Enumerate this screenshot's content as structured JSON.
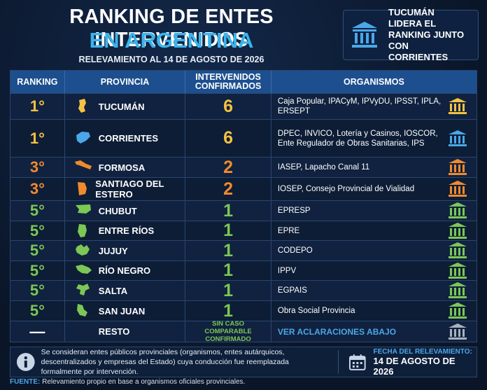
{
  "header": {
    "title": "RANKING DE ENTES INTERVENIDOS",
    "title_highlight": "EN ARGENTINA",
    "subtitle": "RELEVAMIENTO AL 14 DE AGOSTO DE 2026"
  },
  "callout": {
    "text": "TUCUMÁN LIDERA EL RANKING JUNTO CON CORRIENTES"
  },
  "table": {
    "columns": [
      "RANKING",
      "PROVINCIA",
      "INTERVENIDOS CONFIRMADOS",
      "ORGANISMOS"
    ],
    "rows": [
      {
        "rank": "1°",
        "province": "TUCUMÁN",
        "count": 6,
        "organisms": "Caja Popular, IPACyM, IPVyDU, IPSST, IPLA, ERSEPT",
        "color": "#f5c242"
      },
      {
        "rank": "1°",
        "province": "CORRIENTES",
        "count": 6,
        "organisms": "DPEC, INVICO, Lotería y Casinos, IOSCOR, Ente Regulador de Obras Sanitarias, IPS",
        "color": "#f5c242",
        "icon_color": "#4aa8e8"
      },
      {
        "rank": "3°",
        "province": "FORMOSA",
        "count": 2,
        "organisms": "IASEP, Lapacho Canal 11",
        "color": "#f08a2e"
      },
      {
        "rank": "3°",
        "province": "SANTIAGO DEL ESTERO",
        "count": 2,
        "organisms": "IOSEP, Consejo Provincial de Vialidad",
        "color": "#f08a2e"
      },
      {
        "rank": "5°",
        "province": "CHUBUT",
        "count": 1,
        "organisms": "EPRESP",
        "color": "#7cc755"
      },
      {
        "rank": "5°",
        "province": "ENTRE RÍOS",
        "count": 1,
        "organisms": "EPRE",
        "color": "#7cc755"
      },
      {
        "rank": "5°",
        "province": "JUJUY",
        "count": 1,
        "organisms": "CODEPO",
        "color": "#7cc755"
      },
      {
        "rank": "5°",
        "province": "RÍO NEGRO",
        "count": 1,
        "organisms": "IPPV",
        "color": "#7cc755"
      },
      {
        "rank": "5°",
        "province": "SALTA",
        "count": 1,
        "organisms": "EGPAIS",
        "color": "#7cc755"
      },
      {
        "rank": "5°",
        "province": "SAN JUAN",
        "count": 1,
        "organisms": "Obra Social Provincia",
        "color": "#7cc755"
      },
      {
        "rank": "—",
        "province": "RESTO",
        "count": "SIN CASO COMPARABLE CONFIRMADO",
        "organisms": "VER ACLARACIONES ABAJO",
        "color": "#ffffff"
      }
    ]
  },
  "footer": {
    "note": "Se consideran entes públicos provinciales (organismos, entes autárquicos, descentralizados y empresas del Estado) cuya conducción fue reemplazada formalmente por intervención.",
    "date_label": "FECHA DEL RELEVAMIENTO:",
    "date": "14 DE AGOSTO DE 2026",
    "source_label": "FUENTE:",
    "source": "Relevamiento propio en base a organismos oficiales provinciales."
  }
}
